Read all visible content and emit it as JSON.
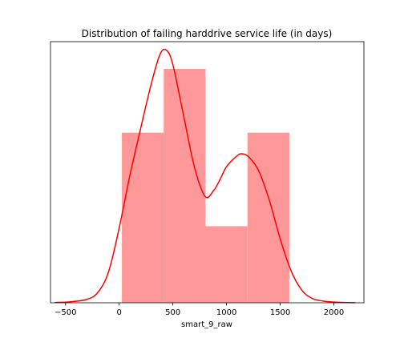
{
  "chart_data": {
    "type": "bar",
    "title": "Distribution of failing harddrive service life (in days)",
    "xlabel": "smart_9_raw",
    "ylabel": "",
    "xlim": [
      -640,
      2280
    ],
    "x_ticks": [
      -500,
      0,
      500,
      1000,
      1500,
      2000
    ],
    "y_ticks_shown": false,
    "grid": false,
    "bar_color": "#ff9999",
    "kde_color": "#ff0000",
    "histogram": {
      "bin_edges": [
        25,
        415,
        805,
        1195,
        1585
      ],
      "heights": [
        2,
        2.75,
        0.9,
        2
      ]
    },
    "kde": {
      "x": [
        -600,
        -450,
        -300,
        -200,
        -100,
        0,
        100,
        200,
        300,
        380,
        440,
        500,
        600,
        700,
        800,
        880,
        940,
        1000,
        1100,
        1150,
        1210,
        1300,
        1400,
        1500,
        1600,
        1700,
        1800,
        1900,
        2000,
        2100,
        2200
      ],
      "y": [
        0.003,
        0.012,
        0.04,
        0.12,
        0.36,
        0.88,
        1.5,
        2.05,
        2.58,
        2.92,
        2.97,
        2.8,
        2.2,
        1.6,
        1.25,
        1.32,
        1.45,
        1.6,
        1.73,
        1.75,
        1.71,
        1.55,
        1.2,
        0.75,
        0.38,
        0.15,
        0.05,
        0.02,
        0.008,
        0.003,
        0.001
      ]
    }
  }
}
